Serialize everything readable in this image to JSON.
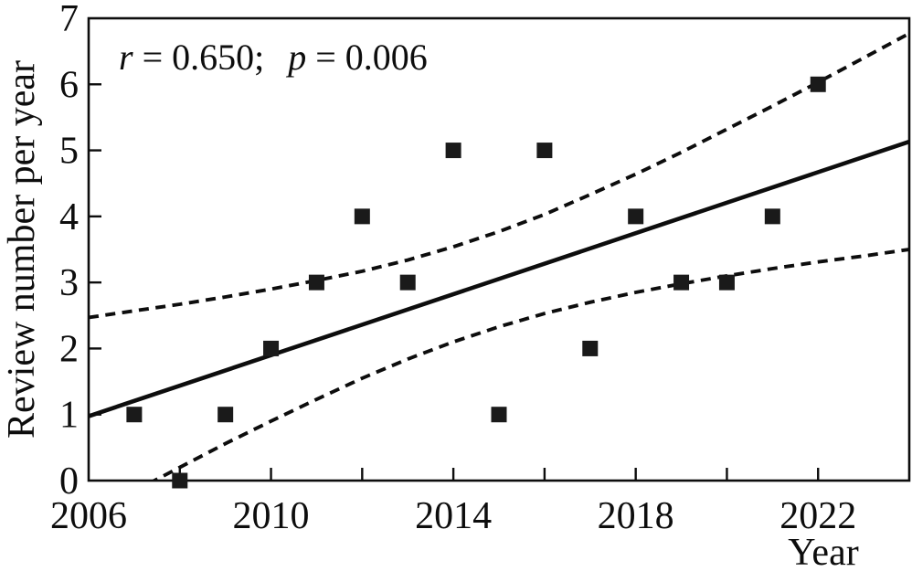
{
  "figure": {
    "background": "#ffffff",
    "ink": "#0d0d0d"
  },
  "annotation": {
    "r_var": "r",
    "r_rest": " = 0.650;",
    "p_var": "p",
    "p_rest": " = 0.006"
  },
  "chart_data": {
    "type": "scatter",
    "title": "",
    "xlabel": "Year",
    "ylabel": "Review number per year",
    "xlim": [
      2006,
      2024
    ],
    "ylim": [
      0,
      7
    ],
    "grid": false,
    "legend": "none",
    "marker": "filled-black-square",
    "x_tick_marks": [
      2008,
      2010,
      2012,
      2014,
      2016,
      2018,
      2020,
      2022
    ],
    "x_tick_labels": [
      "2006",
      "2010",
      "2014",
      "2018",
      "2022"
    ],
    "x_tick_label_values": [
      2006,
      2010,
      2014,
      2018,
      2022
    ],
    "y_tick_marks": [
      1,
      2,
      3,
      4,
      5,
      6
    ],
    "y_tick_labels": [
      "0",
      "1",
      "2",
      "3",
      "4",
      "5",
      "6",
      "7"
    ],
    "y_tick_label_values": [
      0,
      1,
      2,
      3,
      4,
      5,
      6,
      7
    ],
    "points": [
      [
        2007,
        1
      ],
      [
        2008,
        0
      ],
      [
        2009,
        1
      ],
      [
        2010,
        2
      ],
      [
        2011,
        3
      ],
      [
        2012,
        4
      ],
      [
        2013,
        3
      ],
      [
        2014,
        5
      ],
      [
        2015,
        1
      ],
      [
        2016,
        5
      ],
      [
        2017,
        2
      ],
      [
        2018,
        4
      ],
      [
        2019,
        3
      ],
      [
        2020,
        3
      ],
      [
        2021,
        4
      ],
      [
        2022,
        6
      ]
    ],
    "regression_line": {
      "x": [
        2006,
        2024
      ],
      "y": [
        0.975,
        5.132
      ]
    },
    "confidence_band": {
      "x": [
        2006,
        2007,
        2008,
        2009,
        2010,
        2011,
        2012,
        2013,
        2014,
        2015,
        2016,
        2017,
        2018,
        2019,
        2020,
        2021,
        2022,
        2023,
        2024
      ],
      "upper": [
        2.47,
        2.57,
        2.67,
        2.78,
        2.9,
        3.03,
        3.17,
        3.34,
        3.54,
        3.77,
        4.03,
        4.33,
        4.64,
        4.97,
        5.32,
        5.67,
        6.03,
        6.4,
        6.77
      ],
      "lower": [
        -0.52,
        -0.16,
        0.2,
        0.56,
        0.9,
        1.23,
        1.55,
        1.84,
        2.1,
        2.33,
        2.53,
        2.7,
        2.85,
        2.98,
        3.1,
        3.21,
        3.31,
        3.4,
        3.5
      ]
    },
    "stats": {
      "r": "0.650",
      "p": "0.006"
    }
  }
}
